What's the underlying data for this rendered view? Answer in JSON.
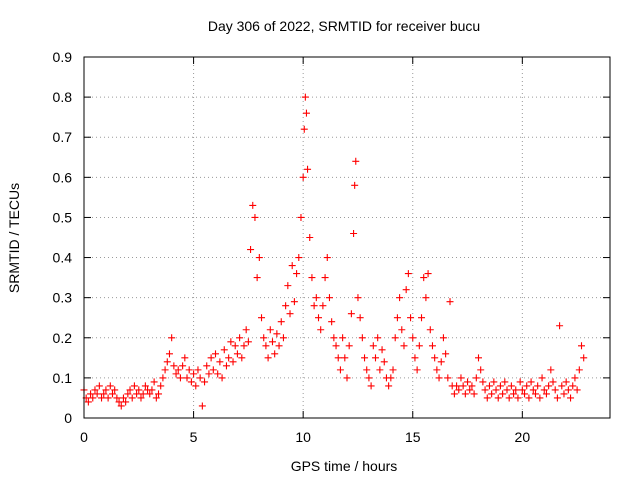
{
  "chart_data": {
    "type": "scatter",
    "title": "Day 306 of 2022, SRMTID for receiver bucu",
    "xlabel": "GPS time / hours",
    "ylabel": "SRMTID / TECUs",
    "xlim": [
      0,
      24
    ],
    "ylim": [
      0,
      0.9
    ],
    "xticks": [
      0,
      5,
      10,
      15,
      20
    ],
    "yticks": [
      0,
      0.1,
      0.2,
      0.3,
      0.4,
      0.5,
      0.6,
      0.7,
      0.8,
      0.9
    ],
    "xtick_labels": [
      "0",
      "5",
      "10",
      "15",
      "20"
    ],
    "ytick_labels": [
      "0",
      "0.1",
      "0.2",
      "0.3",
      "0.4",
      "0.5",
      "0.6",
      "0.7",
      "0.8",
      "0.9"
    ],
    "grid": true,
    "marker": "+",
    "color": "#ff0000",
    "series": [
      {
        "name": "SRMTID",
        "points": [
          [
            0.0,
            0.07
          ],
          [
            0.1,
            0.05
          ],
          [
            0.2,
            0.04
          ],
          [
            0.3,
            0.06
          ],
          [
            0.4,
            0.05
          ],
          [
            0.5,
            0.07
          ],
          [
            0.6,
            0.06
          ],
          [
            0.7,
            0.08
          ],
          [
            0.8,
            0.05
          ],
          [
            0.9,
            0.06
          ],
          [
            1.0,
            0.07
          ],
          [
            1.1,
            0.05
          ],
          [
            1.2,
            0.08
          ],
          [
            1.3,
            0.06
          ],
          [
            1.4,
            0.07
          ],
          [
            1.5,
            0.05
          ],
          [
            1.6,
            0.04
          ],
          [
            1.7,
            0.03
          ],
          [
            1.8,
            0.05
          ],
          [
            1.9,
            0.04
          ],
          [
            2.0,
            0.06
          ],
          [
            2.1,
            0.07
          ],
          [
            2.2,
            0.05
          ],
          [
            2.3,
            0.08
          ],
          [
            2.4,
            0.06
          ],
          [
            2.5,
            0.07
          ],
          [
            2.6,
            0.05
          ],
          [
            2.7,
            0.06
          ],
          [
            2.8,
            0.08
          ],
          [
            2.9,
            0.07
          ],
          [
            3.0,
            0.06
          ],
          [
            3.1,
            0.07
          ],
          [
            3.2,
            0.09
          ],
          [
            3.3,
            0.05
          ],
          [
            3.4,
            0.06
          ],
          [
            3.5,
            0.08
          ],
          [
            3.6,
            0.1
          ],
          [
            3.7,
            0.12
          ],
          [
            3.8,
            0.14
          ],
          [
            3.9,
            0.16
          ],
          [
            4.0,
            0.2
          ],
          [
            4.1,
            0.13
          ],
          [
            4.2,
            0.11
          ],
          [
            4.3,
            0.12
          ],
          [
            4.4,
            0.1
          ],
          [
            4.5,
            0.13
          ],
          [
            4.6,
            0.15
          ],
          [
            4.7,
            0.1
          ],
          [
            4.8,
            0.12
          ],
          [
            4.9,
            0.09
          ],
          [
            5.0,
            0.11
          ],
          [
            5.1,
            0.08
          ],
          [
            5.2,
            0.12
          ],
          [
            5.3,
            0.1
          ],
          [
            5.4,
            0.03
          ],
          [
            5.5,
            0.09
          ],
          [
            5.6,
            0.13
          ],
          [
            5.7,
            0.11
          ],
          [
            5.8,
            0.15
          ],
          [
            5.9,
            0.12
          ],
          [
            6.0,
            0.16
          ],
          [
            6.1,
            0.11
          ],
          [
            6.2,
            0.14
          ],
          [
            6.3,
            0.1
          ],
          [
            6.4,
            0.17
          ],
          [
            6.5,
            0.13
          ],
          [
            6.6,
            0.15
          ],
          [
            6.7,
            0.19
          ],
          [
            6.8,
            0.14
          ],
          [
            6.9,
            0.18
          ],
          [
            7.0,
            0.16
          ],
          [
            7.1,
            0.2
          ],
          [
            7.2,
            0.15
          ],
          [
            7.3,
            0.18
          ],
          [
            7.4,
            0.22
          ],
          [
            7.5,
            0.19
          ],
          [
            7.6,
            0.42
          ],
          [
            7.7,
            0.53
          ],
          [
            7.8,
            0.5
          ],
          [
            7.9,
            0.35
          ],
          [
            8.0,
            0.4
          ],
          [
            8.1,
            0.25
          ],
          [
            8.2,
            0.2
          ],
          [
            8.3,
            0.18
          ],
          [
            8.4,
            0.15
          ],
          [
            8.5,
            0.22
          ],
          [
            8.6,
            0.19
          ],
          [
            8.7,
            0.16
          ],
          [
            8.8,
            0.21
          ],
          [
            8.9,
            0.18
          ],
          [
            9.0,
            0.24
          ],
          [
            9.1,
            0.2
          ],
          [
            9.2,
            0.28
          ],
          [
            9.3,
            0.33
          ],
          [
            9.4,
            0.26
          ],
          [
            9.5,
            0.38
          ],
          [
            9.6,
            0.29
          ],
          [
            9.7,
            0.36
          ],
          [
            9.8,
            0.4
          ],
          [
            9.9,
            0.5
          ],
          [
            10.0,
            0.6
          ],
          [
            10.05,
            0.72
          ],
          [
            10.1,
            0.8
          ],
          [
            10.15,
            0.76
          ],
          [
            10.2,
            0.62
          ],
          [
            10.3,
            0.45
          ],
          [
            10.4,
            0.35
          ],
          [
            10.5,
            0.28
          ],
          [
            10.6,
            0.3
          ],
          [
            10.7,
            0.25
          ],
          [
            10.8,
            0.22
          ],
          [
            10.9,
            0.28
          ],
          [
            11.0,
            0.35
          ],
          [
            11.1,
            0.4
          ],
          [
            11.2,
            0.3
          ],
          [
            11.3,
            0.24
          ],
          [
            11.4,
            0.2
          ],
          [
            11.5,
            0.18
          ],
          [
            11.6,
            0.15
          ],
          [
            11.7,
            0.12
          ],
          [
            11.8,
            0.2
          ],
          [
            11.9,
            0.15
          ],
          [
            12.0,
            0.1
          ],
          [
            12.1,
            0.18
          ],
          [
            12.2,
            0.26
          ],
          [
            12.3,
            0.46
          ],
          [
            12.35,
            0.58
          ],
          [
            12.4,
            0.64
          ],
          [
            12.5,
            0.3
          ],
          [
            12.6,
            0.25
          ],
          [
            12.7,
            0.2
          ],
          [
            12.8,
            0.15
          ],
          [
            12.9,
            0.12
          ],
          [
            13.0,
            0.1
          ],
          [
            13.1,
            0.08
          ],
          [
            13.2,
            0.18
          ],
          [
            13.3,
            0.15
          ],
          [
            13.4,
            0.2
          ],
          [
            13.5,
            0.12
          ],
          [
            13.6,
            0.17
          ],
          [
            13.7,
            0.14
          ],
          [
            13.8,
            0.1
          ],
          [
            13.9,
            0.08
          ],
          [
            14.0,
            0.1
          ],
          [
            14.1,
            0.12
          ],
          [
            14.2,
            0.2
          ],
          [
            14.3,
            0.25
          ],
          [
            14.4,
            0.3
          ],
          [
            14.5,
            0.22
          ],
          [
            14.6,
            0.18
          ],
          [
            14.7,
            0.32
          ],
          [
            14.8,
            0.36
          ],
          [
            14.9,
            0.25
          ],
          [
            15.0,
            0.2
          ],
          [
            15.1,
            0.15
          ],
          [
            15.2,
            0.12
          ],
          [
            15.3,
            0.18
          ],
          [
            15.4,
            0.25
          ],
          [
            15.5,
            0.35
          ],
          [
            15.6,
            0.3
          ],
          [
            15.7,
            0.36
          ],
          [
            15.8,
            0.22
          ],
          [
            15.9,
            0.18
          ],
          [
            16.0,
            0.15
          ],
          [
            16.1,
            0.12
          ],
          [
            16.2,
            0.1
          ],
          [
            16.3,
            0.14
          ],
          [
            16.4,
            0.2
          ],
          [
            16.5,
            0.16
          ],
          [
            16.6,
            0.1
          ],
          [
            16.7,
            0.29
          ],
          [
            16.8,
            0.08
          ],
          [
            16.9,
            0.06
          ],
          [
            17.0,
            0.08
          ],
          [
            17.1,
            0.07
          ],
          [
            17.2,
            0.1
          ],
          [
            17.3,
            0.08
          ],
          [
            17.4,
            0.06
          ],
          [
            17.5,
            0.09
          ],
          [
            17.6,
            0.07
          ],
          [
            17.7,
            0.08
          ],
          [
            17.8,
            0.06
          ],
          [
            17.9,
            0.1
          ],
          [
            18.0,
            0.15
          ],
          [
            18.1,
            0.12
          ],
          [
            18.2,
            0.09
          ],
          [
            18.3,
            0.07
          ],
          [
            18.4,
            0.05
          ],
          [
            18.5,
            0.08
          ],
          [
            18.6,
            0.06
          ],
          [
            18.7,
            0.09
          ],
          [
            18.8,
            0.07
          ],
          [
            18.9,
            0.05
          ],
          [
            19.0,
            0.08
          ],
          [
            19.1,
            0.06
          ],
          [
            19.2,
            0.09
          ],
          [
            19.3,
            0.07
          ],
          [
            19.4,
            0.05
          ],
          [
            19.5,
            0.08
          ],
          [
            19.6,
            0.06
          ],
          [
            19.7,
            0.07
          ],
          [
            19.8,
            0.05
          ],
          [
            19.9,
            0.09
          ],
          [
            20.0,
            0.07
          ],
          [
            20.1,
            0.06
          ],
          [
            20.2,
            0.08
          ],
          [
            20.3,
            0.05
          ],
          [
            20.4,
            0.09
          ],
          [
            20.5,
            0.07
          ],
          [
            20.6,
            0.06
          ],
          [
            20.7,
            0.08
          ],
          [
            20.8,
            0.05
          ],
          [
            20.9,
            0.1
          ],
          [
            21.0,
            0.07
          ],
          [
            21.1,
            0.06
          ],
          [
            21.2,
            0.08
          ],
          [
            21.3,
            0.12
          ],
          [
            21.4,
            0.09
          ],
          [
            21.5,
            0.07
          ],
          [
            21.6,
            0.05
          ],
          [
            21.7,
            0.23
          ],
          [
            21.8,
            0.08
          ],
          [
            21.9,
            0.06
          ],
          [
            22.0,
            0.09
          ],
          [
            22.1,
            0.07
          ],
          [
            22.2,
            0.05
          ],
          [
            22.3,
            0.08
          ],
          [
            22.4,
            0.1
          ],
          [
            22.5,
            0.07
          ],
          [
            22.6,
            0.12
          ],
          [
            22.7,
            0.18
          ],
          [
            22.8,
            0.15
          ]
        ]
      }
    ]
  }
}
